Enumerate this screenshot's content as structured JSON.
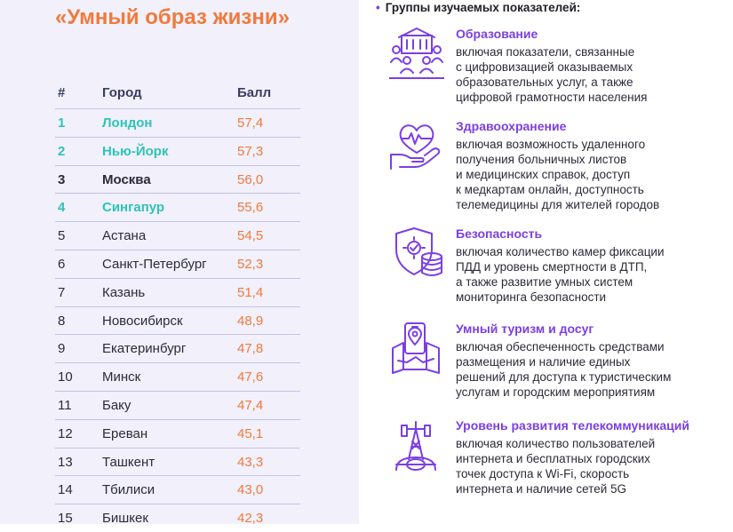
{
  "left": {
    "title": "«Умный образ жизни»",
    "table": {
      "headers": {
        "num": "#",
        "city": "Город",
        "score": "Балл"
      },
      "rows": [
        {
          "num": "1",
          "city": "Лондон",
          "score": "57,4"
        },
        {
          "num": "2",
          "city": "Нью-Йорк",
          "score": "57,3"
        },
        {
          "num": "3",
          "city": "Москва",
          "score": "56,0"
        },
        {
          "num": "4",
          "city": "Сингапур",
          "score": "55,6"
        },
        {
          "num": "5",
          "city": "Астана",
          "score": "54,5"
        },
        {
          "num": "6",
          "city": "Санкт-Петербург",
          "score": "52,3"
        },
        {
          "num": "7",
          "city": "Казань",
          "score": "51,4"
        },
        {
          "num": "8",
          "city": "Новосибирск",
          "score": "48,9"
        },
        {
          "num": "9",
          "city": "Екатеринбург",
          "score": "47,8"
        },
        {
          "num": "10",
          "city": "Минск",
          "score": "47,6"
        },
        {
          "num": "11",
          "city": "Баку",
          "score": "47,4"
        },
        {
          "num": "12",
          "city": "Ереван",
          "score": "45,1"
        },
        {
          "num": "13",
          "city": "Ташкент",
          "score": "43,3"
        },
        {
          "num": "14",
          "city": "Тбилиси",
          "score": "43,0"
        },
        {
          "num": "15",
          "city": "Бишкек",
          "score": "42,3"
        }
      ]
    }
  },
  "right": {
    "title": "Группы изучаемых показателей:",
    "groups": [
      {
        "icon": "education-building-people-icon",
        "title": "Образование",
        "lines": [
          "включая показатели, связанные",
          "с цифровизацией оказываемых",
          "образовательных услуг, а также",
          "цифровой грамотности населения"
        ]
      },
      {
        "icon": "heart-hand-icon",
        "title": "Здравоохранение",
        "lines": [
          "включая возможность удаленного",
          "получения больничных листов",
          "и медицинских справок, доступ",
          "к медкартам онлайн, доступность",
          "телемедицины для жителей городов"
        ]
      },
      {
        "icon": "shield-gear-coins-icon",
        "title": "Безопасность",
        "lines": [
          "включая количество камер фиксации",
          "ПДД и уровень смертности в ДТП,",
          "а также развитие умных систем",
          "мониторинга безопасности"
        ]
      },
      {
        "icon": "phone-map-pin-icon",
        "title": "Умный туризм и досуг",
        "lines": [
          "включая обеспеченность средствами",
          "размещения и наличие единых",
          "решений для доступа к туристическим",
          "услугам и городским мероприятиям"
        ]
      },
      {
        "icon": "cell-tower-globe-icon",
        "title": "Уровень развития телекоммуникаций",
        "lines": [
          "включая количество пользователей",
          "интернета и бесплатных городских",
          "точек доступа к Wi-Fi, скорость",
          "интернета и наличие сетей 5G"
        ]
      }
    ]
  },
  "colors": {
    "accent_orange": "#f07a3c",
    "accent_purple": "#7b3fe4",
    "accent_teal": "#2ec4b6",
    "panel_bg": "#f1f0fb"
  }
}
